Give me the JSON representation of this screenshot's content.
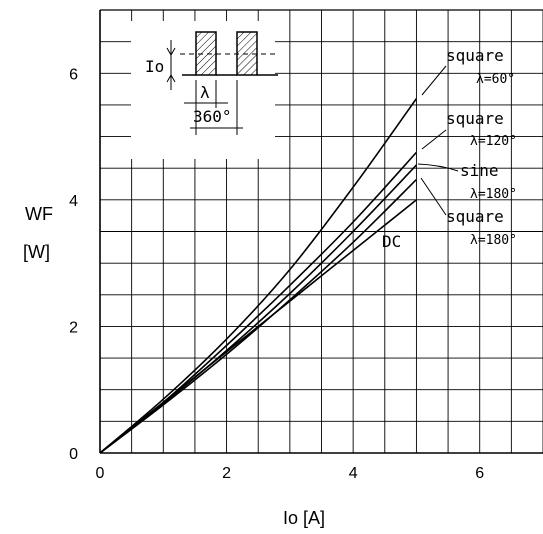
{
  "chart_data": {
    "type": "line",
    "title": "",
    "xlabel": "Io [A]",
    "ylabel": "WF [W]",
    "ylabel_lines": [
      "WF",
      "[W]"
    ],
    "xlim": [
      0,
      7
    ],
    "ylim": [
      0,
      7
    ],
    "x_ticks": [
      0,
      2,
      4,
      6
    ],
    "y_ticks": [
      0,
      2,
      4,
      6
    ],
    "grid": true,
    "series": [
      {
        "name": "square λ=60°",
        "label_lines": [
          "square",
          "λ=60°"
        ],
        "x": [
          0,
          1,
          2,
          3,
          4,
          5
        ],
        "y": [
          0,
          0.85,
          1.8,
          2.9,
          4.2,
          5.6
        ]
      },
      {
        "name": "square λ=120°",
        "label_lines": [
          "square",
          "λ=120°"
        ],
        "x": [
          0,
          1,
          2,
          3,
          4,
          5
        ],
        "y": [
          0,
          0.8,
          1.7,
          2.65,
          3.65,
          4.75
        ]
      },
      {
        "name": "sine λ=180°",
        "label_lines": [
          "sine",
          "λ=180°"
        ],
        "x": [
          0,
          1,
          2,
          3,
          4,
          5
        ],
        "y": [
          0,
          0.78,
          1.62,
          2.52,
          3.5,
          4.55
        ]
      },
      {
        "name": "square λ=180°",
        "label_lines": [
          "square",
          "λ=180°"
        ],
        "x": [
          0,
          1,
          2,
          3,
          4,
          5
        ],
        "y": [
          0,
          0.76,
          1.56,
          2.42,
          3.33,
          4.32
        ]
      },
      {
        "name": "DC",
        "label_lines": [
          "DC"
        ],
        "x": [
          0,
          1,
          2,
          3,
          3.5,
          5
        ],
        "y": [
          0,
          0.8,
          1.6,
          2.4,
          2.8,
          4.0
        ]
      }
    ],
    "inset": {
      "level_label": "Io",
      "lambda_label": "λ",
      "period_label": "360°"
    }
  }
}
